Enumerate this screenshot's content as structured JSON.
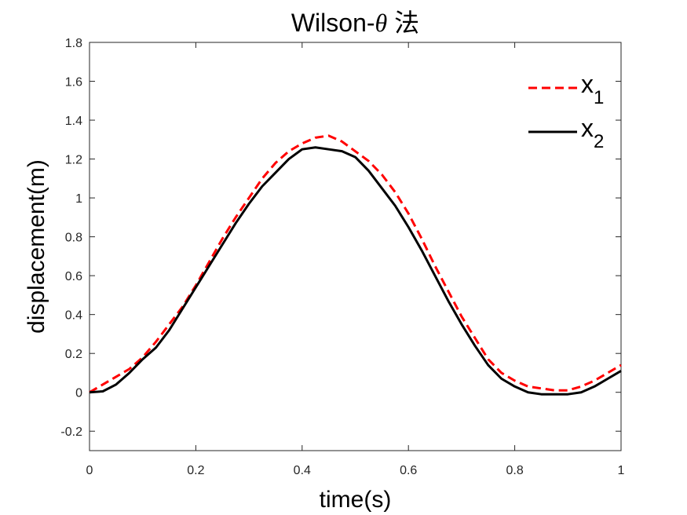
{
  "chart_data": {
    "type": "line",
    "title": "Wilson-θ 法",
    "xlabel": "time(s)",
    "ylabel": "displacement(m)",
    "xlim": [
      0,
      1
    ],
    "ylim": [
      -0.3,
      1.8
    ],
    "xticks": [
      0,
      0.2,
      0.4,
      0.6,
      0.8,
      1
    ],
    "xtick_labels": [
      "0",
      "0.2",
      "0.4",
      "0.6",
      "0.8",
      "1"
    ],
    "yticks": [
      -0.2,
      0,
      0.2,
      0.4,
      0.6,
      0.8,
      1,
      1.2,
      1.4,
      1.6,
      1.8
    ],
    "ytick_labels": [
      "-0.2",
      "0",
      "0.2",
      "0.4",
      "0.6",
      "0.8",
      "1",
      "1.2",
      "1.4",
      "1.6",
      "1.8"
    ],
    "grid": false,
    "legend_position": "top-right",
    "series": [
      {
        "name": "x",
        "name_subscript": "1",
        "color": "#ff0000",
        "line_style": "dashed",
        "x": [
          0,
          0.025,
          0.05,
          0.075,
          0.1,
          0.125,
          0.15,
          0.175,
          0.2,
          0.225,
          0.25,
          0.275,
          0.3,
          0.325,
          0.35,
          0.375,
          0.4,
          0.425,
          0.45,
          0.475,
          0.5,
          0.525,
          0.55,
          0.575,
          0.6,
          0.625,
          0.65,
          0.675,
          0.7,
          0.725,
          0.75,
          0.775,
          0.8,
          0.825,
          0.85,
          0.875,
          0.9,
          0.925,
          0.95,
          0.975,
          1
        ],
        "y": [
          0,
          0.04,
          0.08,
          0.12,
          0.18,
          0.26,
          0.35,
          0.44,
          0.55,
          0.67,
          0.79,
          0.9,
          1.0,
          1.1,
          1.18,
          1.24,
          1.28,
          1.31,
          1.32,
          1.29,
          1.24,
          1.19,
          1.12,
          1.03,
          0.92,
          0.79,
          0.65,
          0.52,
          0.39,
          0.28,
          0.17,
          0.1,
          0.06,
          0.03,
          0.02,
          0.01,
          0.01,
          0.03,
          0.06,
          0.1,
          0.14
        ]
      },
      {
        "name": "x",
        "name_subscript": "2",
        "color": "#000000",
        "line_style": "solid",
        "x": [
          0,
          0.025,
          0.05,
          0.075,
          0.1,
          0.125,
          0.15,
          0.175,
          0.2,
          0.225,
          0.25,
          0.275,
          0.3,
          0.325,
          0.35,
          0.375,
          0.4,
          0.425,
          0.45,
          0.475,
          0.5,
          0.525,
          0.55,
          0.575,
          0.6,
          0.625,
          0.65,
          0.675,
          0.7,
          0.725,
          0.75,
          0.775,
          0.8,
          0.825,
          0.85,
          0.875,
          0.9,
          0.925,
          0.95,
          0.975,
          1
        ],
        "y": [
          0,
          0.005,
          0.04,
          0.1,
          0.17,
          0.23,
          0.32,
          0.43,
          0.54,
          0.65,
          0.76,
          0.87,
          0.97,
          1.06,
          1.13,
          1.2,
          1.25,
          1.26,
          1.25,
          1.24,
          1.21,
          1.14,
          1.05,
          0.96,
          0.85,
          0.73,
          0.6,
          0.47,
          0.35,
          0.24,
          0.14,
          0.07,
          0.03,
          0.0,
          -0.01,
          -0.01,
          -0.01,
          0.0,
          0.03,
          0.07,
          0.11
        ]
      }
    ]
  }
}
